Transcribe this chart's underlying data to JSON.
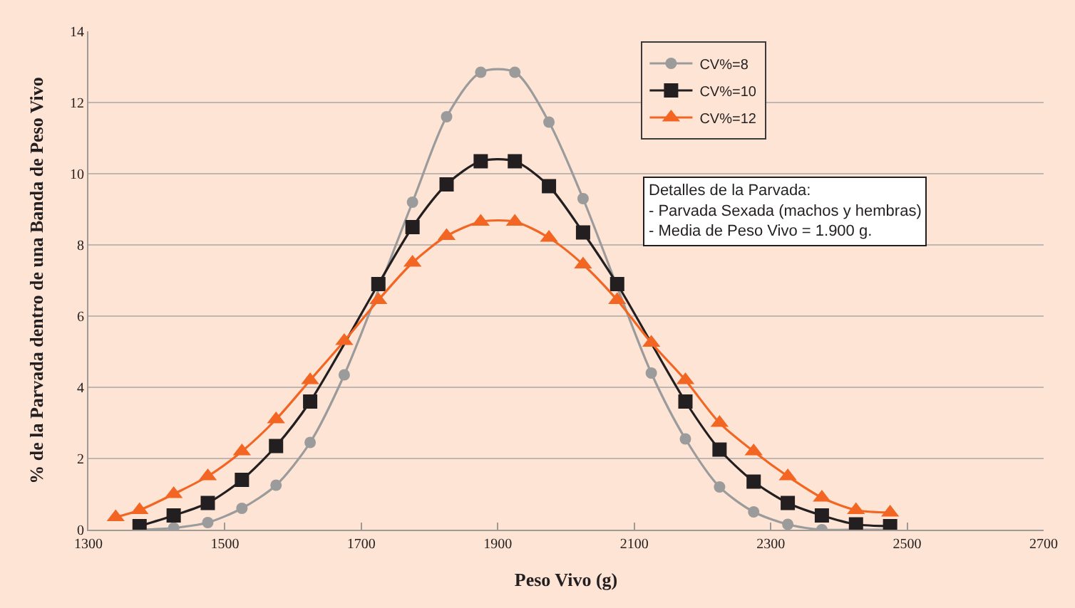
{
  "chart_data": {
    "type": "line",
    "xlabel": "Peso Vivo (g)",
    "ylabel": "% de la Parvada dentro de una Banda de Peso Vivo",
    "xlim": [
      1300,
      2700
    ],
    "xticks": [
      1300,
      1500,
      1700,
      1900,
      2100,
      2300,
      2500,
      2700
    ],
    "ylim": [
      0,
      14
    ],
    "yticks": [
      0,
      2,
      4,
      6,
      8,
      10,
      12,
      14
    ],
    "grid": "y",
    "legend": "top right",
    "annotations": [
      "Detalles de la Parvada:\n- Parvada Sexada (machos y hembras)\n- Media de Peso Vivo = 1.900 g."
    ],
    "series": [
      {
        "name": "CV%=8",
        "color": "#9b9b9b",
        "marker": "circle",
        "x": [
          1375,
          1425,
          1475,
          1525,
          1575,
          1625,
          1675,
          1725,
          1775,
          1825,
          1875,
          1925,
          1975,
          2025,
          2075,
          2125,
          2175,
          2225,
          2275,
          2325,
          2375,
          2425,
          2475
        ],
        "values": [
          0.0,
          0.05,
          0.2,
          0.6,
          1.25,
          2.45,
          4.35,
          null,
          9.2,
          11.6,
          12.85,
          12.85,
          11.45,
          9.3,
          null,
          4.4,
          2.55,
          1.2,
          0.5,
          0.15,
          0.0,
          0.0,
          0.0
        ]
      },
      {
        "name": "CV%=10",
        "color": "#231f20",
        "marker": "square",
        "x": [
          1375,
          1425,
          1475,
          1525,
          1575,
          1625,
          1675,
          1725,
          1775,
          1825,
          1875,
          1925,
          1975,
          2025,
          2075,
          2125,
          2175,
          2225,
          2275,
          2325,
          2375,
          2425,
          2475
        ],
        "values": [
          0.1,
          0.4,
          0.75,
          1.4,
          2.35,
          3.6,
          null,
          6.9,
          8.5,
          9.7,
          10.35,
          10.35,
          9.65,
          8.35,
          6.9,
          null,
          3.6,
          2.25,
          1.35,
          0.75,
          0.4,
          0.15,
          0.1
        ]
      },
      {
        "name": "CV%=12",
        "color": "#f26522",
        "marker": "triangle",
        "x": [
          1340,
          1375,
          1425,
          1475,
          1525,
          1575,
          1625,
          1675,
          1725,
          1775,
          1825,
          1875,
          1925,
          1975,
          2025,
          2075,
          2125,
          2175,
          2225,
          2275,
          2325,
          2375,
          2425,
          2475
        ],
        "values": [
          0.35,
          0.55,
          1.0,
          1.5,
          2.2,
          3.1,
          4.2,
          5.3,
          6.45,
          7.5,
          8.25,
          8.65,
          8.65,
          8.2,
          7.45,
          6.45,
          5.25,
          4.2,
          3.0,
          2.2,
          1.5,
          0.9,
          0.55,
          0.48
        ]
      }
    ]
  }
}
